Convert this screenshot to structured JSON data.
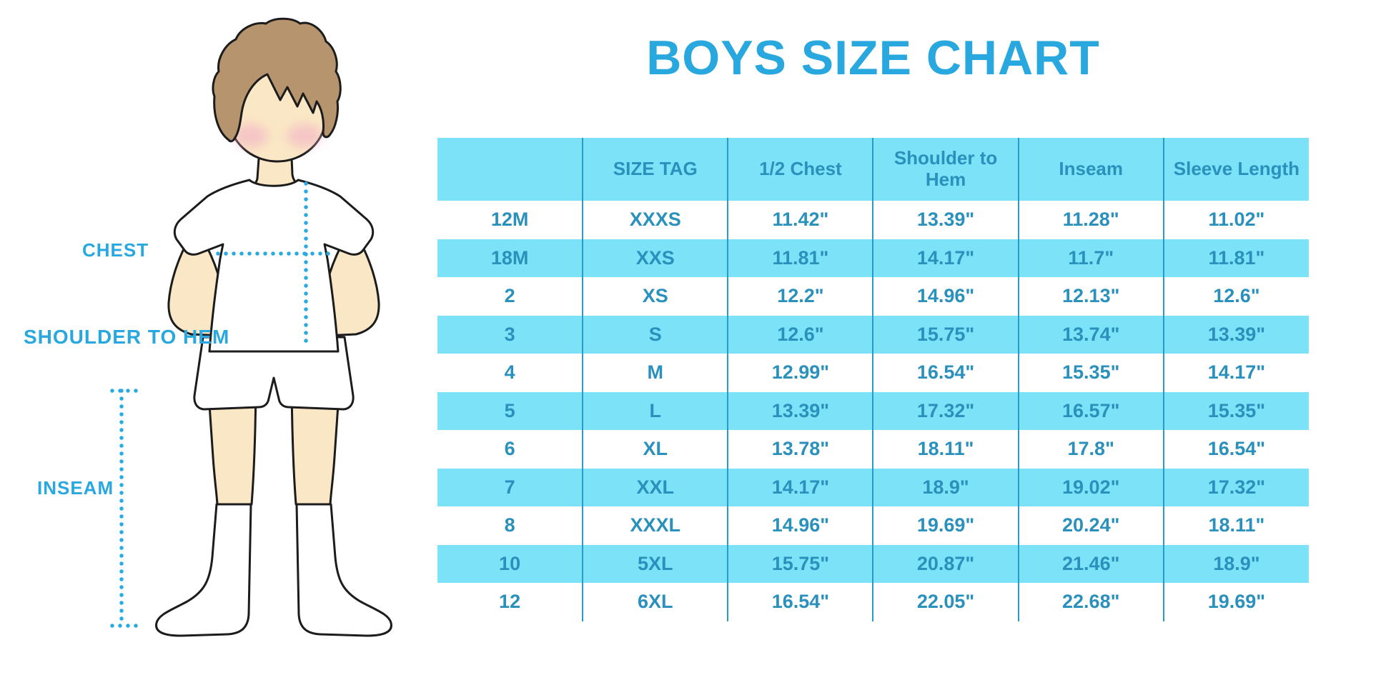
{
  "page": {
    "title": "BOYS SIZE CHART"
  },
  "figure": {
    "labels": {
      "chest": "CHEST",
      "shoulder_to_hem": "SHOULDER TO HEM",
      "inseam": "INSEAM"
    }
  },
  "chart_data": {
    "type": "table",
    "title": "BOYS SIZE CHART",
    "units": "inches",
    "columns": [
      "",
      "SIZE TAG",
      "1/2 Chest",
      "Shoulder to Hem",
      "Inseam",
      "Sleeve Length"
    ],
    "rows": [
      [
        "12M",
        "XXXS",
        "11.42\"",
        "13.39\"",
        "11.28\"",
        "11.02\""
      ],
      [
        "18M",
        "XXS",
        "11.81\"",
        "14.17\"",
        "11.7\"",
        "11.81\""
      ],
      [
        "2",
        "XS",
        "12.2\"",
        "14.96\"",
        "12.13\"",
        "12.6\""
      ],
      [
        "3",
        "S",
        "12.6\"",
        "15.75\"",
        "13.74\"",
        "13.39\""
      ],
      [
        "4",
        "M",
        "12.99\"",
        "16.54\"",
        "15.35\"",
        "14.17\""
      ],
      [
        "5",
        "L",
        "13.39\"",
        "17.32\"",
        "16.57\"",
        "15.35\""
      ],
      [
        "6",
        "XL",
        "13.78\"",
        "18.11\"",
        "17.8\"",
        "16.54\""
      ],
      [
        "7",
        "XXL",
        "14.17\"",
        "18.9\"",
        "19.02\"",
        "17.32\""
      ],
      [
        "8",
        "XXXL",
        "14.96\"",
        "19.69\"",
        "20.24\"",
        "18.11\""
      ],
      [
        "10",
        "5XL",
        "15.75\"",
        "20.87\"",
        "21.46\"",
        "18.9\""
      ],
      [
        "12",
        "6XL",
        "16.54\"",
        "22.05\"",
        "22.68\"",
        "19.69\""
      ]
    ],
    "highlighted_rows": [
      1,
      3,
      5,
      7,
      9
    ],
    "legend_position": "none",
    "grid": "vertical-only"
  },
  "colors": {
    "title_blue": "#29A8DF",
    "table_text_blue": "#2A90BC",
    "band_cyan": "#7CE2F8",
    "grid_line_blue": "#2A9BC9",
    "dotted_line_blue": "#29ABE2",
    "skin": "#FAE7C5",
    "hair_brown": "#B6946E",
    "cheek_pink": "#F2AFC6",
    "outline_black": "#1C1C1C",
    "background": "#FFFFFF"
  }
}
